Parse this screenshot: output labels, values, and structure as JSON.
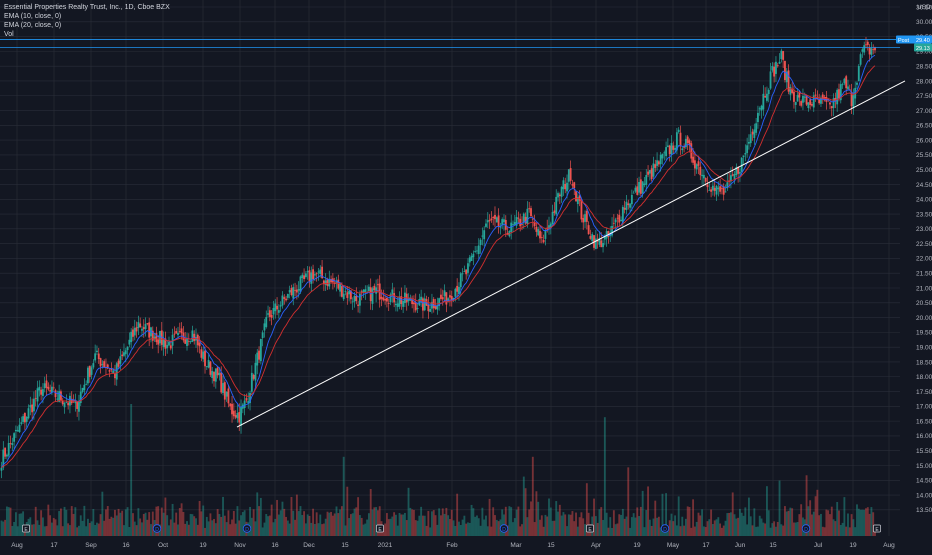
{
  "legend": {
    "title": "Essential Properties Realty Trust, Inc., 1D, Cboe BZX",
    "ema10": "EMA (10, close, 0)",
    "ema20": "EMA (20, close, 0)",
    "vol": "Vol"
  },
  "price_axis": {
    "currency": "USD",
    "labels": [
      "30.50",
      "30.00",
      "29.50",
      "29.00",
      "28.50",
      "28.00",
      "27.50",
      "27.00",
      "26.50",
      "26.00",
      "25.50",
      "25.00",
      "24.50",
      "24.00",
      "23.50",
      "23.00",
      "22.50",
      "22.00",
      "21.50",
      "21.00",
      "20.50",
      "20.00",
      "19.50",
      "19.00",
      "18.50",
      "18.00",
      "17.50",
      "17.00",
      "16.50",
      "16.00",
      "15.50",
      "15.00",
      "14.50",
      "14.00",
      "13.50"
    ],
    "tag_post_label": "Post",
    "tag_post_value": "29.40",
    "tag_last_value": "29.13"
  },
  "time_axis": [
    "Aug",
    "17",
    "Sep",
    "16",
    "Oct",
    "19",
    "Nov",
    "16",
    "Dec",
    "15",
    "2021",
    "Feb",
    "Mar",
    "15",
    "Apr",
    "19",
    "May",
    "17",
    "Jun",
    "15",
    "Jul",
    "19",
    "Aug"
  ],
  "markers": [
    "E",
    "D",
    "D",
    "E",
    "D",
    "E",
    "D",
    "D",
    "E",
    "D",
    "D",
    "E"
  ],
  "colors": {
    "background": "#131722",
    "grid": "#2a2e39",
    "up": "#26a69a",
    "down": "#ef5350",
    "ema10": "#2962ff",
    "ema20": "#d32f2f",
    "trendline": "#ffffff",
    "level_line": "#2196f3",
    "text": "#b2b5be"
  },
  "chart_data": {
    "type": "candlestick",
    "title": "Essential Properties Realty Trust, Inc., 1D, Cboe BZX",
    "y_axis": {
      "label": "USD",
      "range": [
        13.2,
        31.0
      ]
    },
    "x_axis": {
      "start": "Aug 2020",
      "end": "Aug 2021"
    },
    "grid": true,
    "series": [
      {
        "name": "EMA (10, close, 0)",
        "type": "line"
      },
      {
        "name": "EMA (20, close, 0)",
        "type": "line"
      },
      {
        "name": "Vol",
        "type": "bar"
      }
    ],
    "close_anchors": [
      {
        "x": 0,
        "y": 15.2
      },
      {
        "x": 13,
        "y": 16.6
      },
      {
        "x": 22,
        "y": 17.6
      },
      {
        "x": 33,
        "y": 17.3
      },
      {
        "x": 41,
        "y": 17.0
      },
      {
        "x": 52,
        "y": 18.7
      },
      {
        "x": 63,
        "y": 18.1
      },
      {
        "x": 76,
        "y": 19.8
      },
      {
        "x": 92,
        "y": 19.1
      },
      {
        "x": 106,
        "y": 19.5
      },
      {
        "x": 113,
        "y": 18.5
      },
      {
        "x": 121,
        "y": 17.9
      },
      {
        "x": 127,
        "y": 16.9
      },
      {
        "x": 132,
        "y": 16.7
      },
      {
        "x": 136,
        "y": 17.2
      },
      {
        "x": 148,
        "y": 20.0
      },
      {
        "x": 160,
        "y": 20.8
      },
      {
        "x": 173,
        "y": 21.5
      },
      {
        "x": 186,
        "y": 21.1
      },
      {
        "x": 197,
        "y": 20.6
      },
      {
        "x": 208,
        "y": 20.9
      },
      {
        "x": 222,
        "y": 20.6
      },
      {
        "x": 236,
        "y": 20.4
      },
      {
        "x": 248,
        "y": 20.7
      },
      {
        "x": 258,
        "y": 21.5
      },
      {
        "x": 270,
        "y": 23.2
      },
      {
        "x": 283,
        "y": 23.0
      },
      {
        "x": 293,
        "y": 23.5
      },
      {
        "x": 300,
        "y": 22.5
      },
      {
        "x": 310,
        "y": 24.2
      },
      {
        "x": 316,
        "y": 24.9
      },
      {
        "x": 322,
        "y": 23.5
      },
      {
        "x": 330,
        "y": 22.5
      },
      {
        "x": 337,
        "y": 22.7
      },
      {
        "x": 346,
        "y": 23.8
      },
      {
        "x": 356,
        "y": 24.5
      },
      {
        "x": 366,
        "y": 25.3
      },
      {
        "x": 376,
        "y": 26.1
      },
      {
        "x": 380,
        "y": 25.8
      },
      {
        "x": 387,
        "y": 25.1
      },
      {
        "x": 396,
        "y": 24.3
      },
      {
        "x": 402,
        "y": 24.2
      },
      {
        "x": 412,
        "y": 25.4
      },
      {
        "x": 420,
        "y": 27.0
      },
      {
        "x": 428,
        "y": 28.3
      },
      {
        "x": 433,
        "y": 28.8
      },
      {
        "x": 437,
        "y": 27.8
      },
      {
        "x": 443,
        "y": 27.3
      },
      {
        "x": 452,
        "y": 27.3
      },
      {
        "x": 460,
        "y": 27.1
      },
      {
        "x": 468,
        "y": 27.9
      },
      {
        "x": 472,
        "y": 27.4
      },
      {
        "x": 478,
        "y": 29.0
      },
      {
        "x": 485,
        "y": 29.1
      }
    ],
    "ranges": {
      "last_price": 29.13,
      "post_market_price": 29.4
    },
    "trendline": {
      "start": {
        "date": "Nov 2020",
        "price": 16.3
      },
      "end": {
        "date": "Aug 2021",
        "price": 28.0
      }
    }
  }
}
